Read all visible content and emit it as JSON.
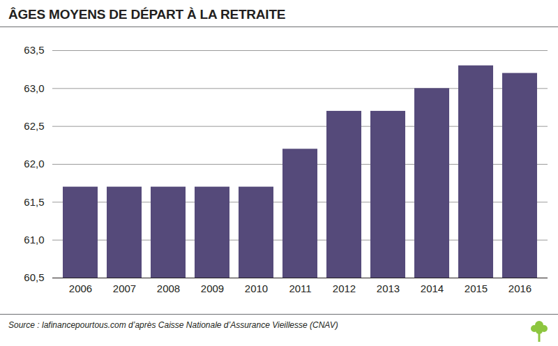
{
  "chart_data": {
    "type": "bar",
    "title": "ÂGES MOYENS DE DÉPART À LA RETRAITE",
    "caption": "Source : lafinancepourtous.com d’après Caisse Nationale d’Assurance Vieillesse (CNAV)",
    "categories": [
      "2006",
      "2007",
      "2008",
      "2009",
      "2010",
      "2011",
      "2012",
      "2013",
      "2014",
      "2015",
      "2016"
    ],
    "values": [
      61.7,
      61.7,
      61.7,
      61.7,
      61.7,
      62.2,
      62.7,
      62.7,
      63.0,
      63.3,
      63.2
    ],
    "color": "#554a7a",
    "ylim": [
      60.5,
      63.5
    ],
    "yticks": [
      {
        "value": 60.5,
        "label": "60,5"
      },
      {
        "value": 61,
        "label": "61,0"
      },
      {
        "value": 61.5,
        "label": "61,5"
      },
      {
        "value": 62,
        "label": "62,0"
      },
      {
        "value": 62.5,
        "label": "62,5"
      },
      {
        "value": 63,
        "label": "63,0"
      },
      {
        "value": 63.5,
        "label": "63,5"
      }
    ],
    "grid": true
  }
}
